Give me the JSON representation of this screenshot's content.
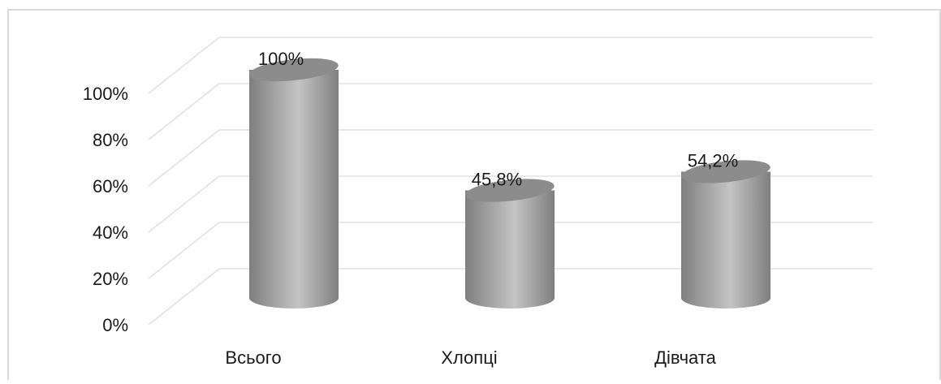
{
  "chart_data": {
    "type": "bar",
    "style": "3d-cylinder",
    "categories": [
      "Всього",
      "Хлопці",
      "Дівчата"
    ],
    "values": [
      100,
      45.8,
      54.2
    ],
    "data_labels": [
      "100%",
      "45,8%",
      "54,2%"
    ],
    "y_ticks": [
      "0%",
      "20%",
      "40%",
      "60%",
      "80%",
      "100%"
    ],
    "ylim": [
      0,
      100
    ],
    "grid": true,
    "title": "",
    "xlabel": "",
    "ylabel": "",
    "colors": {
      "bar_dark": "#7f7f7f",
      "bar_light": "#c4c4c4",
      "bar_top": "#8c8c8c",
      "grid": "#d9d9d9",
      "frame": "#d9d9d9",
      "text": "#1a1a1a"
    }
  }
}
